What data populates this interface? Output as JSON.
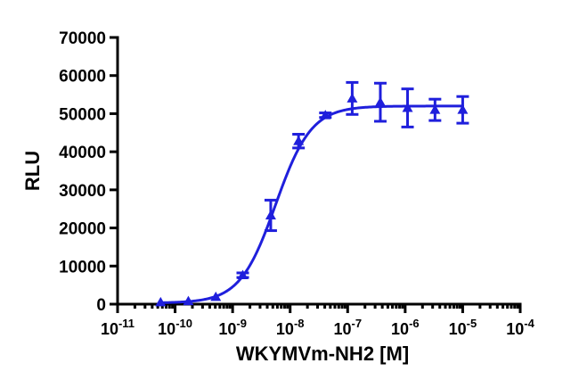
{
  "colors": {
    "series": "#1f1fdc",
    "axis": "#000000",
    "background": "#ffffff"
  },
  "chart_data": {
    "type": "scatter",
    "title": "",
    "xlabel": "WKYMVm-NH2 [M]",
    "ylabel": "RLU",
    "x_scale": "log",
    "xlim": [
      1e-11,
      0.0001
    ],
    "ylim": [
      0,
      70000
    ],
    "grid": false,
    "legend": "none",
    "x_ticks": [
      {
        "value": 1e-11,
        "base": "10",
        "exponent": "-11"
      },
      {
        "value": 1e-10,
        "base": "10",
        "exponent": "-10"
      },
      {
        "value": 1e-09,
        "base": "10",
        "exponent": "-9"
      },
      {
        "value": 1e-08,
        "base": "10",
        "exponent": "-8"
      },
      {
        "value": 1e-07,
        "base": "10",
        "exponent": "-7"
      },
      {
        "value": 1e-06,
        "base": "10",
        "exponent": "-6"
      },
      {
        "value": 1e-05,
        "base": "10",
        "exponent": "-5"
      },
      {
        "value": 0.0001,
        "base": "10",
        "exponent": "-4"
      }
    ],
    "y_ticks": [
      {
        "value": 0,
        "label": "0"
      },
      {
        "value": 10000,
        "label": "10000"
      },
      {
        "value": 20000,
        "label": "20000"
      },
      {
        "value": 30000,
        "label": "30000"
      },
      {
        "value": 40000,
        "label": "40000"
      },
      {
        "value": 50000,
        "label": "50000"
      },
      {
        "value": 60000,
        "label": "60000"
      },
      {
        "value": 70000,
        "label": "70000"
      }
    ],
    "series": [
      {
        "marker": "triangle",
        "points": [
          {
            "x": 5.6e-11,
            "y": 500,
            "err": 300
          },
          {
            "x": 1.7e-10,
            "y": 800,
            "err": 300
          },
          {
            "x": 5.1e-10,
            "y": 1900,
            "err": 400
          },
          {
            "x": 1.5e-09,
            "y": 7600,
            "err": 600
          },
          {
            "x": 4.6e-09,
            "y": 23300,
            "err": 4000
          },
          {
            "x": 1.4e-08,
            "y": 42800,
            "err": 1800
          },
          {
            "x": 4.1e-08,
            "y": 49600,
            "err": 600
          },
          {
            "x": 1.2e-07,
            "y": 54000,
            "err": 4200
          },
          {
            "x": 3.7e-07,
            "y": 53000,
            "err": 5000
          },
          {
            "x": 1.1e-06,
            "y": 51500,
            "err": 5000
          },
          {
            "x": 3.3e-06,
            "y": 51000,
            "err": 2800
          },
          {
            "x": 1e-05,
            "y": 51000,
            "err": 3500
          }
        ],
        "fit": {
          "model": "four-parameter logistic",
          "bottom": 300,
          "top": 52000,
          "ec50": 5.6e-09,
          "hill": 1.4,
          "x_range": [
            5.6e-11,
            1e-05
          ]
        }
      }
    ]
  }
}
